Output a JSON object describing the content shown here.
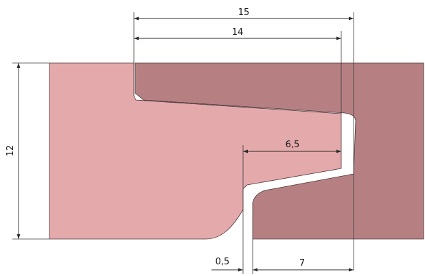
{
  "drawing": {
    "colors": {
      "left_part": "#e4a9ab",
      "right_part": "#b68083",
      "outline": "#4a3436",
      "dimension": "#2a2a2a",
      "background": "#ffffff"
    },
    "dimensions": {
      "top_outer": "15",
      "top_inner": "14",
      "left_height": "12",
      "slot_width": "6,5",
      "gap_width": "0,5",
      "bottom_width": "7"
    }
  }
}
